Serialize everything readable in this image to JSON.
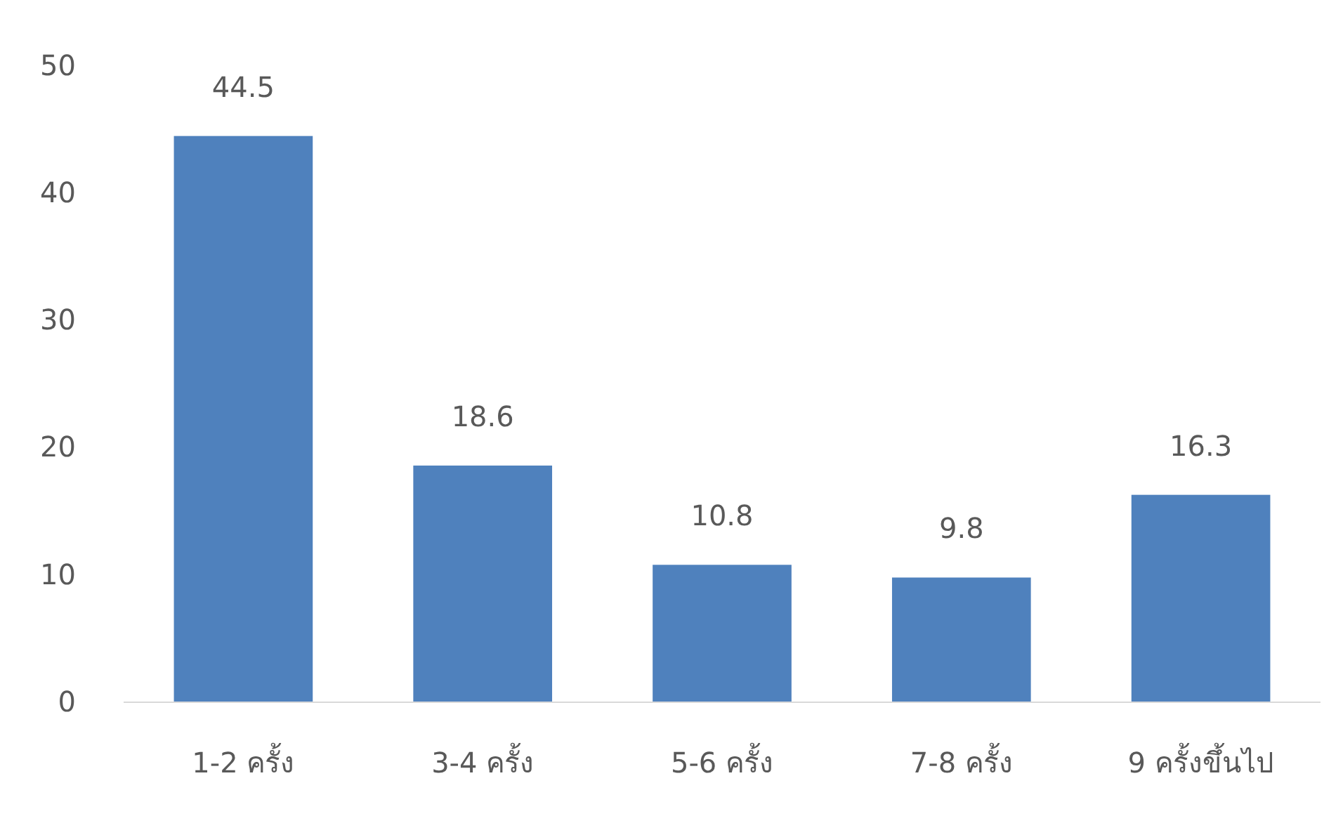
{
  "chart_data": {
    "type": "bar",
    "categories": [
      "1-2 ครั้ง",
      "3-4 ครั้ง",
      "5-6 ครั้ง",
      "7-8 ครั้ง",
      "9 ครั้งขึ้นไป"
    ],
    "values": [
      44.5,
      18.6,
      10.8,
      9.8,
      16.3
    ],
    "color": "#4f81bd",
    "ylim": [
      0,
      50
    ],
    "yticks": [
      0,
      10,
      20,
      30,
      40,
      50
    ],
    "grid": false,
    "data_labels": true
  }
}
